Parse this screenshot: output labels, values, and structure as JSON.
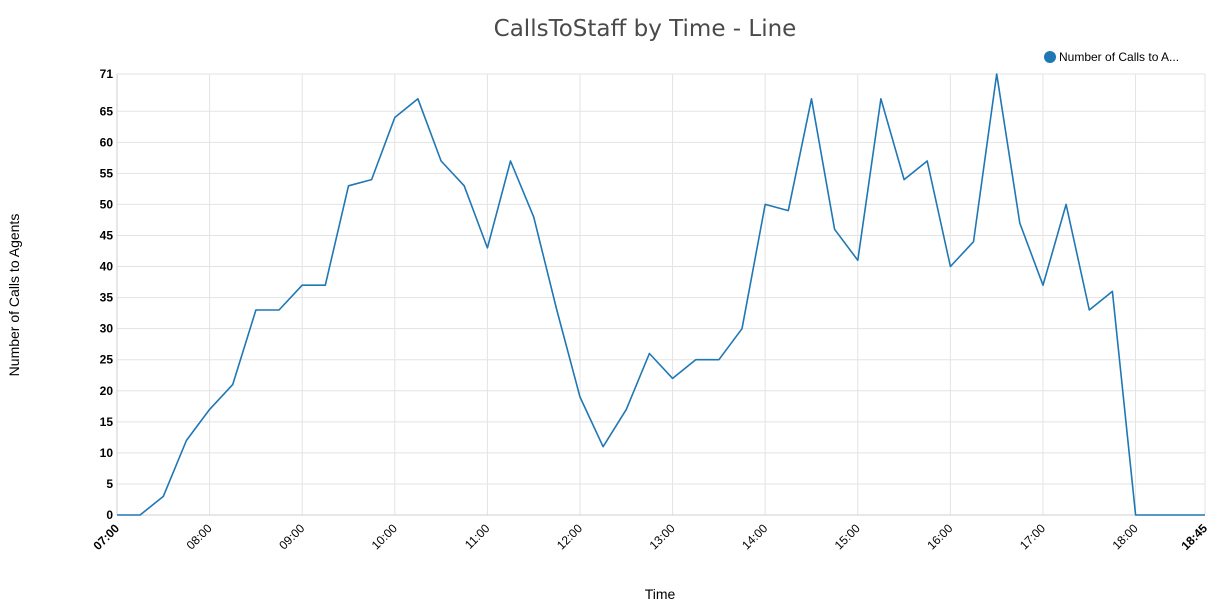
{
  "chart_data": {
    "type": "line",
    "title": "CallsToStaff by Time - Line",
    "xlabel": "Time",
    "ylabel": "Number of Calls to Agents",
    "legend": {
      "label": "Number of Calls to A...",
      "placement": "top-right"
    },
    "color": "#1f77b4",
    "grid": true,
    "ylim": [
      0,
      71
    ],
    "y_ticks": [
      0,
      5,
      10,
      15,
      20,
      25,
      30,
      35,
      40,
      45,
      50,
      55,
      60,
      65,
      71
    ],
    "x_ticks": [
      "07:00",
      "08:00",
      "09:00",
      "10:00",
      "11:00",
      "12:00",
      "13:00",
      "14:00",
      "15:00",
      "16:00",
      "17:00",
      "18:00",
      "18:45"
    ],
    "series": [
      {
        "name": "Number of Calls to A...",
        "x": [
          "07:00",
          "07:15",
          "07:30",
          "07:45",
          "08:00",
          "08:15",
          "08:30",
          "08:45",
          "09:00",
          "09:15",
          "09:30",
          "09:45",
          "10:00",
          "10:15",
          "10:30",
          "10:45",
          "11:00",
          "11:15",
          "11:30",
          "11:45",
          "12:00",
          "12:15",
          "12:30",
          "12:45",
          "13:00",
          "13:15",
          "13:30",
          "13:45",
          "14:00",
          "14:15",
          "14:30",
          "14:45",
          "15:00",
          "15:15",
          "15:30",
          "15:45",
          "16:00",
          "16:15",
          "16:30",
          "16:45",
          "17:00",
          "17:15",
          "17:30",
          "17:45",
          "18:00",
          "18:15",
          "18:30",
          "18:45"
        ],
        "values": [
          0,
          0,
          3,
          12,
          17,
          21,
          33,
          33,
          37,
          37,
          53,
          54,
          64,
          67,
          57,
          53,
          43,
          57,
          48,
          33,
          19,
          11,
          17,
          26,
          22,
          25,
          25,
          30,
          50,
          49,
          67,
          46,
          41,
          67,
          54,
          57,
          40,
          44,
          71,
          47,
          37,
          50,
          33,
          36,
          0,
          0,
          0,
          0
        ]
      }
    ]
  }
}
